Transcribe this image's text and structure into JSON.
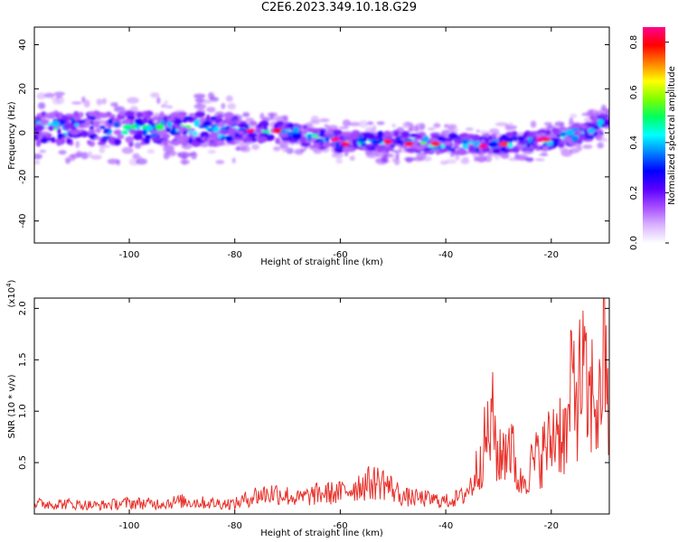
{
  "figure_title": "C2E6.2023.349.10.18.G29",
  "chart_data": [
    {
      "type": "heatmap",
      "title": "C2E6.2023.349.10.18.G29",
      "xlabel": "Height of straight line (km)",
      "ylabel": "Frequency (Hz)",
      "xlim": [
        -118,
        -9
      ],
      "ylim": [
        -50,
        48
      ],
      "xticks": [
        -100,
        -80,
        -60,
        -40,
        -20
      ],
      "yticks": [
        -40,
        -20,
        0,
        20,
        40
      ],
      "colorbar": {
        "label": "Normalized spectral amplitude",
        "range": [
          0,
          0.86
        ],
        "ticks": [
          0.0,
          0.2,
          0.4,
          0.6,
          0.8
        ],
        "colors": [
          "#ffffff",
          "#d9b3ff",
          "#a64dff",
          "#5a00ff",
          "#0000ff",
          "#0080ff",
          "#00ffff",
          "#00ff60",
          "#7fff00",
          "#ffff00",
          "#ff8000",
          "#ff0000",
          "#ff0090"
        ]
      },
      "ridge": [
        {
          "x": -118,
          "y": 2
        },
        {
          "x": -100,
          "y": 2
        },
        {
          "x": -90,
          "y": 2
        },
        {
          "x": -80,
          "y": 1
        },
        {
          "x": -70,
          "y": 0
        },
        {
          "x": -60,
          "y": -4
        },
        {
          "x": -50,
          "y": -4
        },
        {
          "x": -40,
          "y": -5
        },
        {
          "x": -30,
          "y": -5
        },
        {
          "x": -20,
          "y": -3
        },
        {
          "x": -12,
          "y": 1
        },
        {
          "x": -9,
          "y": 6
        }
      ],
      "bright_spots": [
        {
          "x": -77,
          "y": 1,
          "amp": 0.86
        },
        {
          "x": -72,
          "y": 1,
          "amp": 0.8
        },
        {
          "x": -61,
          "y": -3,
          "amp": 0.86
        },
        {
          "x": -59,
          "y": -5,
          "amp": 0.84
        },
        {
          "x": -51,
          "y": -4,
          "amp": 0.82
        },
        {
          "x": -47,
          "y": -5,
          "amp": 0.82
        },
        {
          "x": -42,
          "y": -5,
          "amp": 0.78
        },
        {
          "x": -33,
          "y": -6,
          "amp": 0.86
        },
        {
          "x": -29,
          "y": -5,
          "amp": 0.76
        },
        {
          "x": -22,
          "y": -3,
          "amp": 0.86
        },
        {
          "x": -21,
          "y": -3,
          "amp": 0.84
        }
      ]
    },
    {
      "type": "line",
      "xlabel": "Height of straight line (km)",
      "ylabel": "SNR (10 * v/v)",
      "y_multiplier": "(x10",
      "y_multiplier_exp": "4",
      "y_multiplier_close": ")",
      "xlim": [
        -118,
        -9
      ],
      "ylim": [
        0,
        2.1
      ],
      "xticks": [
        -100,
        -80,
        -60,
        -40,
        -20
      ],
      "yticks": [
        0.5,
        1.0,
        1.5,
        2.0
      ],
      "ytick_labels": [
        "0.5",
        "1.0",
        "1.5",
        "2.0"
      ],
      "color": "#e8302a",
      "series": [
        {
          "x": [
            -118,
            -112,
            -106,
            -100,
            -95,
            -90,
            -85,
            -80,
            -76,
            -72,
            -68,
            -64,
            -60,
            -56,
            -52,
            -48,
            -44,
            -40,
            -37,
            -35,
            -33,
            -31,
            -30,
            -28,
            -26,
            -24,
            -22,
            -20,
            -19,
            -17,
            -16,
            -15,
            -14,
            -13,
            -12,
            -11,
            -10,
            -9
          ],
          "values": [
            0.12,
            0.12,
            0.1,
            0.13,
            0.12,
            0.15,
            0.13,
            0.12,
            0.22,
            0.25,
            0.18,
            0.24,
            0.25,
            0.35,
            0.38,
            0.2,
            0.18,
            0.15,
            0.2,
            0.35,
            0.75,
            1.1,
            0.6,
            0.9,
            0.35,
            0.55,
            0.7,
            0.85,
            1.05,
            0.9,
            1.6,
            1.4,
            1.7,
            1.2,
            1.5,
            1.1,
            2.12,
            0.85
          ]
        }
      ]
    }
  ]
}
